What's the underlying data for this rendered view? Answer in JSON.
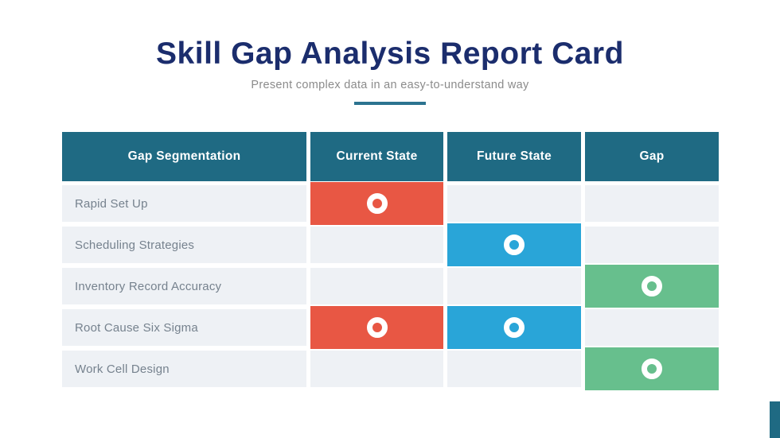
{
  "chart_data": {
    "type": "table",
    "title": "Skill Gap Analysis Report Card",
    "subtitle": "Present complex data in an easy-to-understand way",
    "columns": [
      "Gap Segmentation",
      "Current State",
      "Future State",
      "Gap"
    ],
    "rows": [
      {
        "Gap Segmentation": "Rapid Set Up",
        "Current State": true,
        "Future State": false,
        "Gap": false
      },
      {
        "Gap Segmentation": "Scheduling Strategies",
        "Current State": false,
        "Future State": true,
        "Gap": false
      },
      {
        "Gap Segmentation": "Inventory Record Accuracy",
        "Current State": false,
        "Future State": false,
        "Gap": true
      },
      {
        "Gap Segmentation": "Root Cause Six Sigma",
        "Current State": true,
        "Future State": true,
        "Gap": false
      },
      {
        "Gap Segmentation": "Work Cell Design",
        "Current State": false,
        "Future State": false,
        "Gap": true
      }
    ],
    "marker": "donut-ring",
    "marker_colors": {
      "Current State": "#E85744",
      "Future State": "#29A5D8",
      "Gap": "#67BF8D"
    },
    "legend_position": "none",
    "grid": false
  },
  "colors": {
    "title_navy": "#1B2D6D",
    "subtitle_gray": "#8B8B8B",
    "divider_teal": "#2C7390",
    "header_teal": "#1F6A83",
    "row_background": "#EEF1F5",
    "row_label_gray": "#76828E",
    "marker_ring_white": "#FFFFFF",
    "corner_accent_teal": "#1F6A83"
  }
}
